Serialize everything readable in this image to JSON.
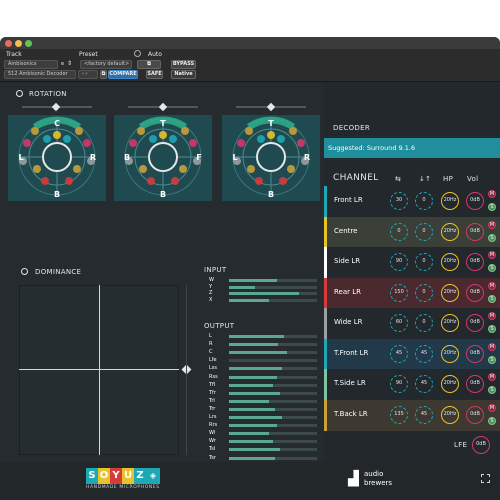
{
  "host": {
    "track_label": "Track",
    "preset_label": "Preset",
    "auto_label": "Auto",
    "track_name": "Ambisonics",
    "track_suffix": "e",
    "plugin_name": "512 Ambisonic Decoder",
    "preset_name": "<factory default>",
    "compare_label": "COMPARE",
    "safe_label": "SAFE",
    "bypass_label": "BYPASS",
    "native_label": "Native"
  },
  "sections": {
    "rotation": "ROTATION",
    "dominance": "DOMINANCE",
    "input": "INPUT",
    "output": "OUTPUT",
    "decoder": "DECODER",
    "channel": "CHANNEL",
    "hp": "HP",
    "vol": "Vol"
  },
  "rotation_views": [
    {
      "top": "C",
      "left": "L",
      "right": "R",
      "bottom": "B"
    },
    {
      "top": "T",
      "left": "B",
      "right": "F",
      "bottom": "B"
    },
    {
      "top": "T",
      "left": "L",
      "right": "R",
      "bottom": "B"
    }
  ],
  "suggested": "Suggested: Surround 9.1.6",
  "input_meters": [
    {
      "label": "W",
      "level": 0.55
    },
    {
      "label": "Y",
      "level": 0.3
    },
    {
      "label": "Z",
      "level": 0.8
    },
    {
      "label": "X",
      "level": 0.45
    }
  ],
  "output_meters": [
    {
      "label": "L",
      "level": 0.62
    },
    {
      "label": "R",
      "level": 0.56
    },
    {
      "label": "C",
      "level": 0.66
    },
    {
      "label": "Lfe",
      "level": 0.0
    },
    {
      "label": "Lss",
      "level": 0.6
    },
    {
      "label": "Rss",
      "level": 0.55
    },
    {
      "label": "Tfl",
      "level": 0.5
    },
    {
      "label": "Tfr",
      "level": 0.58
    },
    {
      "label": "Trl",
      "level": 0.46
    },
    {
      "label": "Trr",
      "level": 0.52
    },
    {
      "label": "Lrs",
      "level": 0.6
    },
    {
      "label": "Rrs",
      "level": 0.55
    },
    {
      "label": "Wl",
      "level": 0.45
    },
    {
      "label": "Wr",
      "level": 0.5
    },
    {
      "label": "Tsl",
      "level": 0.58
    },
    {
      "label": "Tsr",
      "level": 0.52
    }
  ],
  "channels": [
    {
      "name": "Front LR",
      "color": "#1ea7b5",
      "angle": "30",
      "elev": "0",
      "hp": "20Hz",
      "vol": "0dB",
      "mute": "M",
      "solo": "S"
    },
    {
      "name": "Centre",
      "color": "#e8c22a",
      "angle": "0",
      "elev": "0",
      "hp": "20Hz",
      "vol": "0dB",
      "mute": "M",
      "solo": "S"
    },
    {
      "name": "Side LR",
      "color": "#ffffff",
      "angle": "90",
      "elev": "0",
      "hp": "20Hz",
      "vol": "0dB",
      "mute": "M",
      "solo": "S"
    },
    {
      "name": "Rear LR",
      "color": "#d63b3b",
      "angle": "150",
      "elev": "0",
      "hp": "20Hz",
      "vol": "0dB",
      "mute": "M",
      "solo": "S"
    },
    {
      "name": "Wide LR",
      "color": "#9aa0a4",
      "angle": "60",
      "elev": "0",
      "hp": "20Hz",
      "vol": "0dB",
      "mute": "M",
      "solo": "S"
    },
    {
      "name": "T.Front LR",
      "color": "#1ea7b5",
      "angle": "45",
      "elev": "45",
      "hp": "20Hz",
      "vol": "0dB",
      "mute": "M",
      "solo": "S"
    },
    {
      "name": "T.Side LR",
      "color": "#7cc5a0",
      "angle": "90",
      "elev": "45",
      "hp": "20Hz",
      "vol": "0dB",
      "mute": "M",
      "solo": "S"
    },
    {
      "name": "T.Back LR",
      "color": "#c9a13a",
      "angle": "135",
      "elev": "45",
      "hp": "20Hz",
      "vol": "0dB",
      "mute": "M",
      "solo": "S"
    }
  ],
  "lfe": {
    "label": "LFE",
    "vol": "0dB"
  },
  "footer": {
    "brand_letters": [
      "S",
      "O",
      "Y",
      "U",
      "Z"
    ],
    "brand_tagline": "HANDMADE MICROPHONES",
    "maker_line1": "audio",
    "maker_line2": "brewers"
  },
  "colors": {
    "teal": "#1ea7b5",
    "yellow": "#e8c22a",
    "red": "#d63b3b",
    "pink": "#d6356e"
  }
}
